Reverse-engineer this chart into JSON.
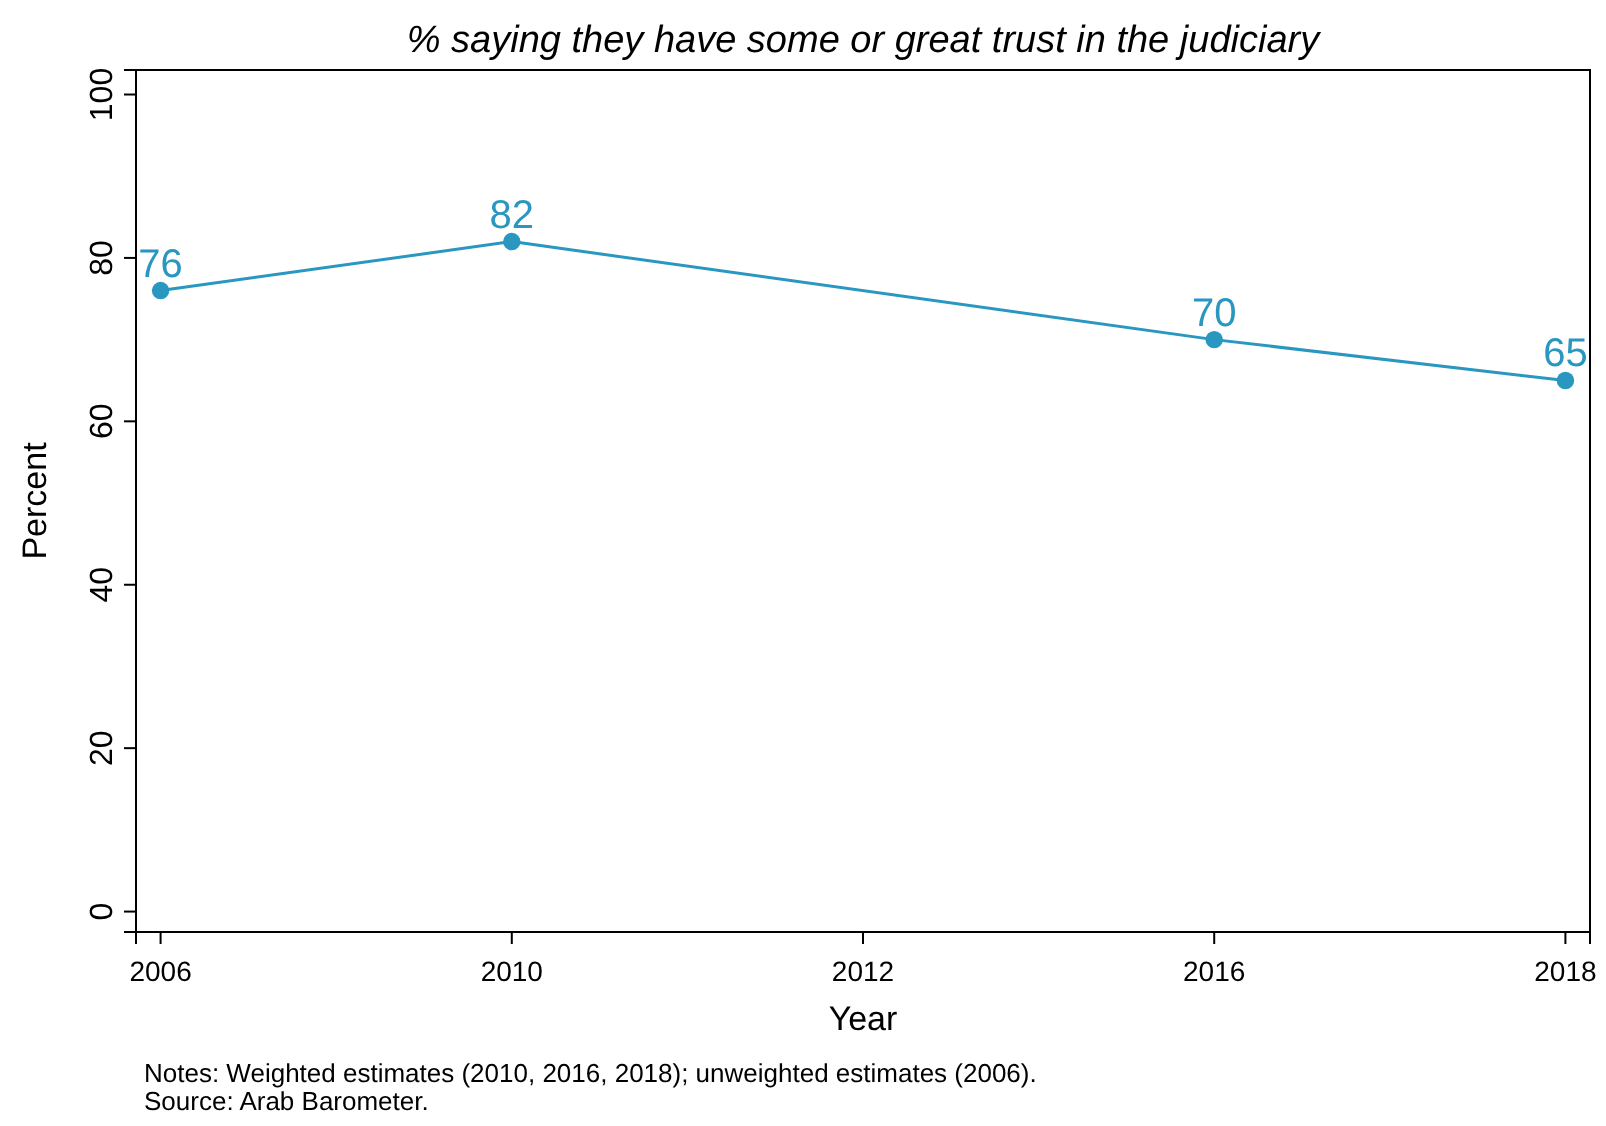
{
  "chart_data": {
    "type": "line",
    "title": "% saying they have some or great trust in the judiciary",
    "xlabel": "Year",
    "ylabel": "Percent",
    "categories": [
      "2006",
      "2010",
      "2012",
      "2016",
      "2018"
    ],
    "series": [
      {
        "color": "#2a97c0",
        "values": [
          76,
          82,
          null,
          70,
          65
        ]
      }
    ],
    "ylim": [
      -2.5,
      103
    ],
    "yticks": [
      0,
      20,
      40,
      60,
      80,
      100
    ],
    "grid": false,
    "marker": "circle",
    "line_style": "solid",
    "data_labels": true,
    "annotations": [
      "Notes: Weighted estimates (2010, 2016, 2018); unweighted estimates (2006).",
      "Source: Arab Barometer."
    ]
  }
}
